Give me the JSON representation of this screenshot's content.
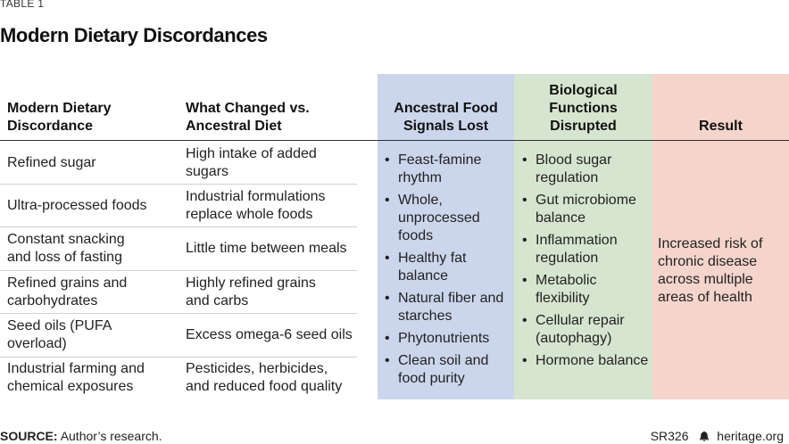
{
  "label": "TABLE 1",
  "title": "Modern Dietary Discordances",
  "headers": {
    "discordance": "Modern Dietary Discordance",
    "changed": "What Changed vs. Ancestral Diet",
    "ancestral": "Ancestral Food Signals Lost",
    "biological": "Biological Functions Disrupted",
    "result": "Result"
  },
  "rows": [
    {
      "discordance": "Refined sugar",
      "changed": "High intake of added sugars"
    },
    {
      "discordance": "Ultra-processed foods",
      "changed": "Industrial formulations replace whole foods"
    },
    {
      "discordance": "Constant snacking and loss of fasting",
      "changed": "Little time between meals"
    },
    {
      "discordance": "Refined grains and carbohydrates",
      "changed": "Highly refined grains and carbs"
    },
    {
      "discordance": "Seed oils (PUFA overload)",
      "changed": "Excess omega-6 seed oils"
    },
    {
      "discordance": "Industrial farming and chemical exposures",
      "changed": "Pesticides, herbicides, and reduced food quality"
    }
  ],
  "ancestral_signals": [
    "Feast-famine rhythm",
    "Whole, unprocessed foods",
    "Healthy fat balance",
    "Natural fiber and starches",
    "Phytonutrients",
    "Clean soil and food purity"
  ],
  "biological_functions": [
    "Blood sugar regulation",
    "Gut microbiome balance",
    "Inflammation regulation",
    "Metabolic flexibility",
    "Cellular repair (autophagy)",
    "Hormone balance"
  ],
  "result": "Increased risk of chronic disease across multiple areas of health",
  "source_label": "SOURCE:",
  "source_text": "Author’s research.",
  "report_id": "SR326",
  "site": "heritage.org",
  "colors": {
    "ancestral_bg": "#cbd6ec",
    "biological_bg": "#d6e5cf",
    "result_bg": "#f5d4cb"
  }
}
